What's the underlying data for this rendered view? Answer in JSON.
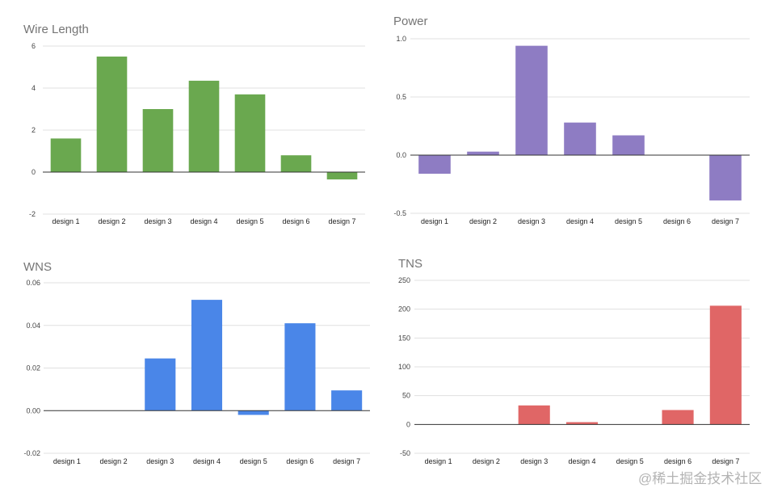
{
  "chart_data": [
    {
      "type": "bar",
      "title": "Wire Length",
      "categories": [
        "design 1",
        "design 2",
        "design 3",
        "design 4",
        "design 5",
        "design 6",
        "design 7"
      ],
      "values": [
        1.6,
        5.5,
        3.0,
        4.35,
        3.7,
        0.8,
        -0.35
      ],
      "ylim": [
        -2,
        6
      ],
      "yticks": [
        -2,
        0,
        2,
        4,
        6
      ],
      "ytick_labels": [
        "-2",
        "0",
        "2",
        "4",
        "6"
      ],
      "color": "#6aa84f",
      "grid": true
    },
    {
      "type": "bar",
      "title": "Power",
      "categories": [
        "design 1",
        "design 2",
        "design 3",
        "design 4",
        "design 5",
        "design 6",
        "design 7"
      ],
      "values": [
        -0.16,
        0.03,
        0.94,
        0.28,
        0.17,
        0,
        -0.39
      ],
      "ylim": [
        -0.5,
        1.0
      ],
      "yticks": [
        -0.5,
        0,
        0.5,
        1.0
      ],
      "ytick_labels": [
        "-0.5",
        "0.0",
        "0.5",
        "1.0"
      ],
      "color": "#8e7cc3",
      "grid": true
    },
    {
      "type": "bar",
      "title": "WNS",
      "categories": [
        "design 1",
        "design 2",
        "design 3",
        "design 4",
        "design 5",
        "design 6",
        "design 7"
      ],
      "values": [
        0,
        0,
        0.0245,
        0.052,
        -0.002,
        0.041,
        0.0095
      ],
      "ylim": [
        -0.02,
        0.06
      ],
      "yticks": [
        -0.02,
        0,
        0.02,
        0.04,
        0.06
      ],
      "ytick_labels": [
        "-0.02",
        "0.00",
        "0.02",
        "0.04",
        "0.06"
      ],
      "color": "#4a86e8",
      "grid": true
    },
    {
      "type": "bar",
      "title": "TNS",
      "categories": [
        "design 1",
        "design 2",
        "design 3",
        "design 4",
        "design 5",
        "design 6",
        "design 7"
      ],
      "values": [
        0,
        0,
        33,
        4,
        0,
        25,
        206
      ],
      "ylim": [
        -50,
        250
      ],
      "yticks": [
        -50,
        0,
        50,
        100,
        150,
        200,
        250
      ],
      "ytick_labels": [
        "-50",
        "0",
        "50",
        "100",
        "150",
        "200",
        "250"
      ],
      "color": "#e06666",
      "grid": true
    }
  ],
  "watermark": "@稀土掘金技术社区"
}
